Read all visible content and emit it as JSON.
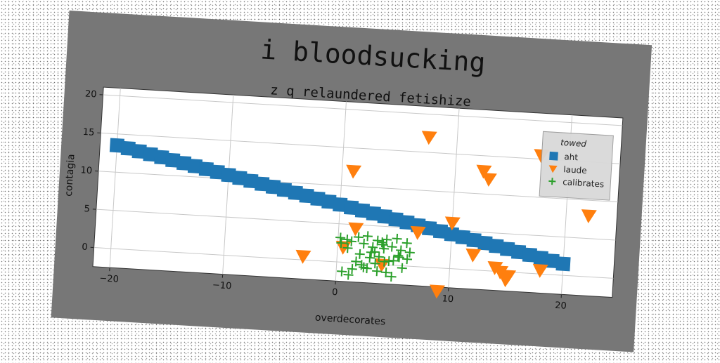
{
  "chart_data": {
    "type": "scatter",
    "title": "i bloodsucking",
    "subtitle": "z q relaundered fetishize",
    "xlabel": "overdecorates",
    "ylabel": "contagia",
    "xlim": [
      -21.5,
      24.5
    ],
    "ylim": [
      -2.5,
      21
    ],
    "xticks": [
      -20,
      -10,
      0,
      10,
      20
    ],
    "yticks": [
      0,
      5,
      10,
      15,
      20
    ],
    "xtick_labels": [
      "−20",
      "−10",
      "0",
      "10",
      "20"
    ],
    "ytick_labels": [
      "0",
      "5",
      "10",
      "15",
      "20"
    ],
    "grid": true,
    "legend": {
      "title": "towed",
      "placement": "top-right"
    },
    "series": [
      {
        "name": "aht",
        "marker": "square",
        "color": "#1f77b4",
        "x": [
          -20,
          -19,
          -18,
          -17,
          -16,
          -15,
          -14,
          -13,
          -12,
          -11,
          -10,
          -9,
          -8,
          -7,
          -6,
          -5,
          -4,
          -3,
          -2,
          -1,
          0,
          1,
          2,
          3,
          4,
          5,
          6,
          7,
          8,
          9,
          10,
          11,
          12,
          13,
          14,
          15,
          16,
          17,
          18,
          19,
          20
        ],
        "y": [
          13.5,
          13.2,
          12.9,
          12.6,
          12.3,
          12.0,
          11.7,
          11.4,
          11.1,
          10.8,
          10.5,
          10.2,
          9.9,
          9.6,
          9.3,
          9.0,
          8.7,
          8.4,
          8.1,
          7.8,
          7.5,
          7.2,
          6.9,
          6.6,
          6.3,
          6.0,
          5.7,
          5.4,
          5.1,
          4.8,
          4.5,
          4.2,
          3.9,
          3.6,
          3.3,
          3.0,
          2.7,
          2.4,
          2.1,
          1.8,
          1.5
        ]
      },
      {
        "name": "laude",
        "marker": "triangle-down",
        "color": "#ff7f0e",
        "x": [
          -3,
          0.5,
          1,
          1.5,
          4,
          7,
          7.5,
          9,
          10,
          12,
          12.5,
          13,
          14,
          14.5,
          15,
          15.2,
          17.5,
          18,
          22
        ],
        "y": [
          0.5,
          2,
          12,
          4.5,
          0,
          4.5,
          17,
          -3,
          6,
          2,
          13,
          12,
          0.5,
          0,
          -1,
          -0.5,
          15.5,
          0.5,
          8
        ]
      },
      {
        "name": "calibrates",
        "marker": "plus",
        "color": "#2ca02c",
        "x": [
          0.2,
          0.8,
          1.2,
          1.8,
          2.3,
          2.6,
          3.1,
          3.5,
          3.9,
          4.3,
          4.8,
          5.2,
          5.6,
          6.1,
          0.5,
          1.4,
          2.0,
          2.9,
          3.3,
          4.1,
          4.6,
          5.4,
          6.4,
          0.9,
          1.7,
          2.4,
          3.7,
          4.4,
          5.0,
          5.8,
          0.3,
          1.1,
          2.2,
          3.0,
          3.6,
          4.2,
          4.9,
          5.5,
          6.2,
          2.7,
          3.4,
          4.0
        ],
        "y": [
          3.2,
          3.0,
          2.8,
          3.4,
          2.6,
          3.6,
          2.2,
          3.1,
          2.9,
          3.3,
          2.4,
          3.5,
          2.0,
          3.0,
          -1.2,
          -0.8,
          1.2,
          0.8,
          1.6,
          2.1,
          0.5,
          1.3,
          1.8,
          1.9,
          0.2,
          -0.5,
          1.0,
          -1.0,
          0.6,
          -0.3,
          2.5,
          -1.6,
          -0.2,
          1.5,
          -0.9,
          0.4,
          -1.5,
          1.1,
          0.9,
          -0.6,
          0.1,
          2.6
        ]
      }
    ]
  }
}
